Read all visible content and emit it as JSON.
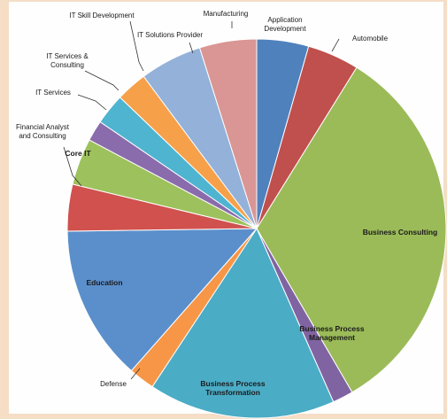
{
  "chart_data": {
    "type": "pie",
    "title": "",
    "legend": "none",
    "start_angle_deg": 0,
    "direction": "clockwise",
    "slices": [
      {
        "label": "Application Development",
        "value": 5.0,
        "color": "#4f81bd"
      },
      {
        "label": "Automobile",
        "value": 5.0,
        "color": "#c0504d"
      },
      {
        "label": "Business Consulting",
        "value": 37.0,
        "color": "#9bbb59"
      },
      {
        "label": "Business Process Management",
        "value": 2.0,
        "color": "#8064a2"
      },
      {
        "label": "Business Process Transformation",
        "value": 18.0,
        "color": "#4bacc6"
      },
      {
        "label": "Defense",
        "value": 2.5,
        "color": "#f79646"
      },
      {
        "label": "Education",
        "value": 15.0,
        "color": "#5b8fcb"
      },
      {
        "label": "Financial Analyst and Consulting",
        "value": 4.5,
        "color": "#d0514e"
      },
      {
        "label": "Core IT",
        "value": 4.5,
        "color": "#9dc15c"
      },
      {
        "label": "IT Services",
        "value": 2.0,
        "color": "#8a6bac"
      },
      {
        "label": "IT Services & Consulting",
        "value": 3.0,
        "color": "#4fb4cf"
      },
      {
        "label": "IT Skill Development",
        "value": 3.0,
        "color": "#f7a04a"
      },
      {
        "label": "IT Solutions Provider",
        "value": 6.0,
        "color": "#93b1d9"
      },
      {
        "label": "Manufacturing",
        "value": 5.5,
        "color": "#d99694"
      }
    ],
    "labels": [
      {
        "slice": 0,
        "lines": [
          "Application",
          "Development"
        ],
        "placement": "outside"
      },
      {
        "slice": 1,
        "lines": [
          "Automobile"
        ],
        "placement": "outside"
      },
      {
        "slice": 2,
        "lines": [
          "Business Consulting"
        ],
        "placement": "inside"
      },
      {
        "slice": 3,
        "lines": [
          "Business Process",
          "Management"
        ],
        "placement": "inside"
      },
      {
        "slice": 4,
        "lines": [
          "Business Process",
          "Transformation"
        ],
        "placement": "inside"
      },
      {
        "slice": 5,
        "lines": [
          "Defense"
        ],
        "placement": "outside"
      },
      {
        "slice": 6,
        "lines": [
          "Education"
        ],
        "placement": "inside"
      },
      {
        "slice": 7,
        "lines": [
          "Financial Analyst",
          "and Consulting"
        ],
        "placement": "outside"
      },
      {
        "slice": 8,
        "lines": [
          "Core IT"
        ],
        "placement": "inside"
      },
      {
        "slice": 9,
        "lines": [
          "IT Services"
        ],
        "placement": "outside"
      },
      {
        "slice": 10,
        "lines": [
          "IT Services &",
          "Consulting"
        ],
        "placement": "outside"
      },
      {
        "slice": 11,
        "lines": [
          "IT Skill Development"
        ],
        "placement": "outside"
      },
      {
        "slice": 12,
        "lines": [
          "IT Solutions Provider"
        ],
        "placement": "outside"
      },
      {
        "slice": 13,
        "lines": [
          "Manufacturing"
        ],
        "placement": "outside"
      }
    ]
  }
}
